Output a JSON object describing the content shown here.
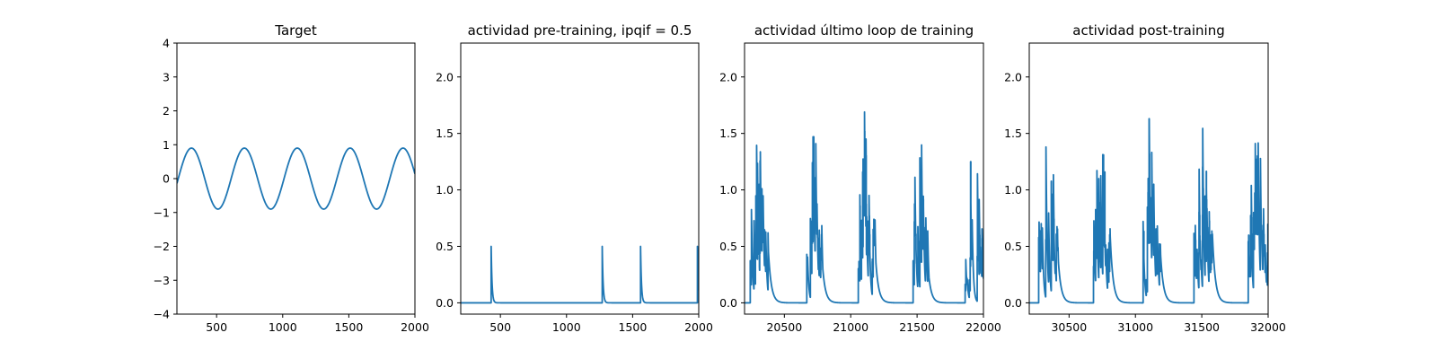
{
  "colors": {
    "series": "#1f77b4",
    "axes": "#000000",
    "background": "#ffffff"
  },
  "chart_data": [
    {
      "type": "line",
      "title": "Target",
      "xlabel": "",
      "ylabel": "",
      "xlim": [
        200,
        2000
      ],
      "ylim": [
        -4,
        4
      ],
      "xticks": [
        500,
        1000,
        1500,
        2000
      ],
      "yticks": [
        -4,
        -3,
        -2,
        -1,
        0,
        1,
        2,
        3,
        4
      ],
      "grid": false,
      "series": [
        {
          "description": "sinusoid",
          "amplitude": 0.9,
          "period": 400,
          "peaks_at_x": [
            310,
            710,
            1110,
            1510,
            1910
          ],
          "troughs_at_x": [
            510,
            910,
            1310,
            1710
          ]
        }
      ]
    },
    {
      "type": "line",
      "title": "actividad pre-training, ipqif = 0.5",
      "xlabel": "",
      "ylabel": "",
      "xlim": [
        200,
        2000
      ],
      "ylim": [
        -0.1,
        2.3
      ],
      "xticks": [
        500,
        1000,
        1500,
        2000
      ],
      "yticks": [
        0.0,
        0.5,
        1.0,
        1.5,
        2.0
      ],
      "grid": false,
      "series": [
        {
          "description": "decaying spikes",
          "spike_x": [
            430,
            1270,
            1560,
            1990
          ],
          "spike_height": 0.5,
          "baseline": 0.0
        }
      ]
    },
    {
      "type": "line",
      "title": "actividad último loop de training",
      "xlabel": "",
      "ylabel": "",
      "xlim": [
        20200,
        22000
      ],
      "ylim": [
        -0.1,
        2.3
      ],
      "xticks": [
        20500,
        21000,
        21500,
        22000
      ],
      "yticks": [
        0.0,
        0.5,
        1.0,
        1.5,
        2.0
      ],
      "grid": false,
      "series": [
        {
          "description": "bursts",
          "burst_windows": [
            [
              20240,
              20380
            ],
            [
              20660,
              20790
            ],
            [
              21050,
              21190
            ],
            [
              21470,
              21590
            ],
            [
              21860,
              22000
            ]
          ],
          "burst_peaks": [
            1.7,
            1.47,
            1.69,
            1.48,
            1.25
          ]
        }
      ]
    },
    {
      "type": "line",
      "title": "actividad post-training",
      "xlabel": "",
      "ylabel": "",
      "xlim": [
        30200,
        32000
      ],
      "ylim": [
        -0.1,
        2.3
      ],
      "xticks": [
        30500,
        31000,
        31500,
        32000
      ],
      "yticks": [
        0.0,
        0.5,
        1.0,
        1.5,
        2.0
      ],
      "grid": false,
      "series": [
        {
          "description": "bursts",
          "burst_windows": [
            [
              30270,
              30420
            ],
            [
              30680,
              30810
            ],
            [
              31050,
              31190
            ],
            [
              31440,
              31580
            ],
            [
              31850,
              32000
            ]
          ],
          "burst_peaks": [
            1.38,
            1.62,
            1.63,
            1.69,
            1.62
          ]
        }
      ]
    }
  ]
}
